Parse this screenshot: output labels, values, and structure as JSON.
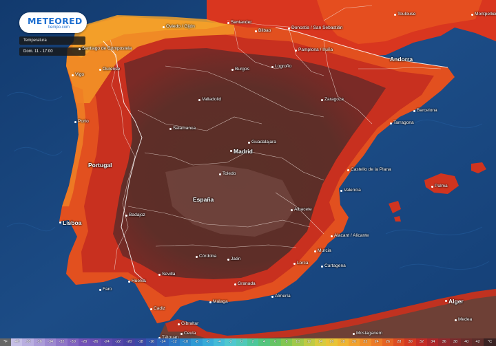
{
  "brand": {
    "name": "METEORED",
    "domain": "tiempo.com"
  },
  "panel": {
    "layer_label": "Temperatura",
    "datetime": "Dom. 11 - 17:00"
  },
  "places": [
    {
      "id": "toulouse",
      "label": "Toulouse"
    },
    {
      "id": "montpellier",
      "label": "Montpellier"
    },
    {
      "id": "oviedo-gijon",
      "label": "Oviedo / Gijón"
    },
    {
      "id": "santander",
      "label": "Santander"
    },
    {
      "id": "bilbao",
      "label": "Bilbao"
    },
    {
      "id": "donostia",
      "label": "Donostia / San Sebastián"
    },
    {
      "id": "santiago",
      "label": "Santiago de Compostela"
    },
    {
      "id": "vigo",
      "label": "Vigo"
    },
    {
      "id": "ourense",
      "label": "Ourense"
    },
    {
      "id": "pamplona",
      "label": "Pamplona / Iruña"
    },
    {
      "id": "andorra",
      "label": "Andorra"
    },
    {
      "id": "burgos",
      "label": "Burgos"
    },
    {
      "id": "logrono",
      "label": "Logroño"
    },
    {
      "id": "zaragoza",
      "label": "Zaragoza"
    },
    {
      "id": "valladolid",
      "label": "Valladolid"
    },
    {
      "id": "barcelona",
      "label": "Barcelona"
    },
    {
      "id": "tarragona",
      "label": "Tarragona"
    },
    {
      "id": "porto",
      "label": "Porto"
    },
    {
      "id": "salamanca",
      "label": "Salamanca"
    },
    {
      "id": "guadalajara",
      "label": "Guadalajara"
    },
    {
      "id": "madrid",
      "label": "Madrid"
    },
    {
      "id": "portugal",
      "label": "Portugal"
    },
    {
      "id": "toledo",
      "label": "Toledo"
    },
    {
      "id": "castellon",
      "label": "Castello de la Plana"
    },
    {
      "id": "valencia",
      "label": "Valencia"
    },
    {
      "id": "palma",
      "label": "Palma"
    },
    {
      "id": "espana",
      "label": "España"
    },
    {
      "id": "albacete",
      "label": "Albacete"
    },
    {
      "id": "badajoz",
      "label": "Badajoz"
    },
    {
      "id": "lisboa",
      "label": "Lisboa"
    },
    {
      "id": "alicante",
      "label": "Alacant / Alicante"
    },
    {
      "id": "murcia",
      "label": "Murcia"
    },
    {
      "id": "cordoba",
      "label": "Córdoba"
    },
    {
      "id": "jaen",
      "label": "Jaén"
    },
    {
      "id": "lorca",
      "label": "Lorca"
    },
    {
      "id": "cartagena",
      "label": "Cartagena"
    },
    {
      "id": "sevilla",
      "label": "Sevilla"
    },
    {
      "id": "huelva",
      "label": "Huelva"
    },
    {
      "id": "faro",
      "label": "Faro"
    },
    {
      "id": "granada",
      "label": "Granada"
    },
    {
      "id": "almeria",
      "label": "Almería"
    },
    {
      "id": "malaga",
      "label": "Málaga"
    },
    {
      "id": "cadiz",
      "label": "Cadiz"
    },
    {
      "id": "alger",
      "label": "Alger"
    },
    {
      "id": "medea",
      "label": "Medea"
    },
    {
      "id": "gibraltar",
      "label": "Gibraltar"
    },
    {
      "id": "ceuta",
      "label": "Ceuta"
    },
    {
      "id": "tetouan",
      "label": "Tétouan"
    },
    {
      "id": "mostaganem",
      "label": "Mostaganem"
    }
  ],
  "legend": {
    "unit_start": "°F",
    "unit_end": "°C",
    "bins": [
      {
        "label": "-40",
        "color": "#c6bfe6"
      },
      {
        "label": "-38",
        "color": "#b9aee0"
      },
      {
        "label": "-36",
        "color": "#ab9bd8"
      },
      {
        "label": "-34",
        "color": "#9d88d0"
      },
      {
        "label": "-32",
        "color": "#8f75c8"
      },
      {
        "label": "-30",
        "color": "#8163c0"
      },
      {
        "label": "-28",
        "color": "#7352b8"
      },
      {
        "label": "-26",
        "color": "#6a4fb4"
      },
      {
        "label": "-24",
        "color": "#5e4aae"
      },
      {
        "label": "-22",
        "color": "#5246a8"
      },
      {
        "label": "-20",
        "color": "#4742a2"
      },
      {
        "label": "-18",
        "color": "#3c48a6"
      },
      {
        "label": "-16",
        "color": "#3356b0"
      },
      {
        "label": "-14",
        "color": "#2b65ba"
      },
      {
        "label": "-12",
        "color": "#2a76c4"
      },
      {
        "label": "-10",
        "color": "#2c88cc"
      },
      {
        "label": "-8",
        "color": "#2f9ad4"
      },
      {
        "label": "-6",
        "color": "#37abd9"
      },
      {
        "label": "-4",
        "color": "#43bbd8"
      },
      {
        "label": "-2",
        "color": "#4ec8cf"
      },
      {
        "label": "0",
        "color": "#4fc9b8"
      },
      {
        "label": "2",
        "color": "#4cc79b"
      },
      {
        "label": "4",
        "color": "#52c57d"
      },
      {
        "label": "6",
        "color": "#66c464"
      },
      {
        "label": "8",
        "color": "#82c651"
      },
      {
        "label": "10",
        "color": "#a1c94a"
      },
      {
        "label": "12",
        "color": "#bfcb43"
      },
      {
        "label": "14",
        "color": "#d8cb3d"
      },
      {
        "label": "16",
        "color": "#e9c437"
      },
      {
        "label": "18",
        "color": "#f0b532"
      },
      {
        "label": "20",
        "color": "#f2a22e"
      },
      {
        "label": "22",
        "color": "#f08e2b"
      },
      {
        "label": "24",
        "color": "#ec7a28"
      },
      {
        "label": "26",
        "color": "#e66425"
      },
      {
        "label": "28",
        "color": "#de4d22"
      },
      {
        "label": "30",
        "color": "#d33a22"
      },
      {
        "label": "32",
        "color": "#c42b25"
      },
      {
        "label": "34",
        "color": "#ad2629"
      },
      {
        "label": "36",
        "color": "#93282c"
      },
      {
        "label": "38",
        "color": "#7c2a2c"
      },
      {
        "label": "40",
        "color": "#6b2c2b"
      },
      {
        "label": "42",
        "color": "#5d2d2a"
      }
    ]
  }
}
